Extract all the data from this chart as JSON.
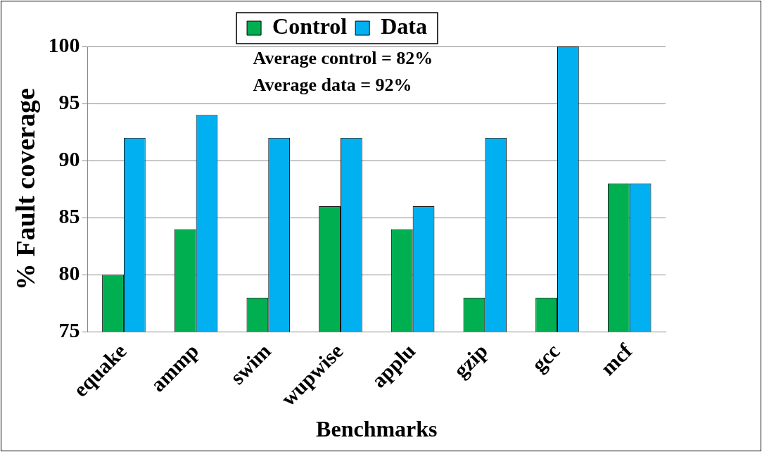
{
  "chart_data": {
    "type": "bar",
    "xlabel": "Benchmarks",
    "ylabel": "% Fault coverage",
    "categories": [
      "equake",
      "ammp",
      "swim",
      "wupwise",
      "applu",
      "gzip",
      "gcc",
      "mcf"
    ],
    "series": [
      {
        "name": "Control",
        "color": "#00b050",
        "values": [
          80,
          84,
          78,
          86,
          84,
          78,
          78,
          88
        ]
      },
      {
        "name": "Data",
        "color": "#00b0f0",
        "values": [
          92,
          94,
          92,
          92,
          86,
          92,
          100,
          88
        ]
      }
    ],
    "ylim": [
      75,
      100
    ],
    "yticks": [
      75,
      80,
      85,
      90,
      95,
      100
    ],
    "grid": "y",
    "legend": "top",
    "annotations": [
      "Average control = 82%",
      "Average data = 92%"
    ]
  }
}
